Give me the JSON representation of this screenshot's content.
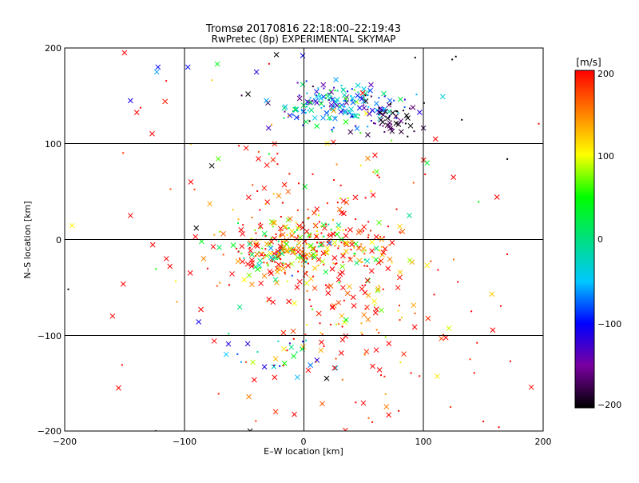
{
  "chart_data": {
    "type": "scatter",
    "title": "Tromsø 20170816 22:18:00–22:19:43",
    "subtitle": "RwPretec (8p) EXPERIMENTAL SKYMAP",
    "xlabel": "E–W location [km]",
    "ylabel": "N–S location [km]",
    "xlim": [
      -200,
      200
    ],
    "ylim": [
      -200,
      200
    ],
    "xticks": [
      "−200",
      "−100",
      "0",
      "100",
      "200"
    ],
    "yticks": [
      "−200",
      "−100",
      "0",
      "100",
      "200"
    ],
    "grid": true,
    "colorbar": {
      "label": "[m/s]",
      "range": [
        -200,
        200
      ],
      "ticks": [
        "200",
        "100",
        "0",
        "−100",
        "−200"
      ],
      "colormap": [
        "#000000",
        "#7a00a0",
        "#0000ff",
        "#00c8ff",
        "#00e080",
        "#00ff00",
        "#ffff00",
        "#ff8000",
        "#ff0000"
      ]
    },
    "clusters": [
      {
        "cx": 30,
        "cy": 140,
        "sx": 28,
        "sy": 12,
        "n": 190,
        "vmean": -70,
        "vsd": 70
      },
      {
        "cx": 75,
        "cy": 125,
        "sx": 15,
        "sy": 10,
        "n": 45,
        "vmean": -180,
        "vsd": 20
      },
      {
        "cx": 0,
        "cy": -12,
        "sx": 38,
        "sy": 18,
        "n": 360,
        "vmean": 150,
        "vsd": 90
      },
      {
        "cx": 10,
        "cy": 40,
        "sx": 45,
        "sy": 25,
        "n": 70,
        "vmean": 170,
        "vsd": 60
      },
      {
        "cx": 45,
        "cy": -70,
        "sx": 35,
        "sy": 35,
        "n": 90,
        "vmean": 180,
        "vsd": 60
      },
      {
        "cx": -20,
        "cy": -120,
        "sx": 25,
        "sy": 15,
        "n": 25,
        "vmean": -40,
        "vsd": 60
      },
      {
        "cx": 40,
        "cy": -150,
        "sx": 60,
        "sy": 25,
        "n": 30,
        "vmean": 180,
        "vsd": 50
      },
      {
        "cx": 0,
        "cy": 0,
        "sx": 110,
        "sy": 110,
        "n": 70,
        "vmean": 170,
        "vsd": 70
      }
    ],
    "markers": [
      {
        "x": -150,
        "y": 195,
        "v": 200,
        "s": "x"
      },
      {
        "x": -122,
        "y": 180,
        "v": -100,
        "s": "x"
      },
      {
        "x": -123,
        "y": 175,
        "v": -60,
        "s": "x"
      },
      {
        "x": -97,
        "y": 180,
        "v": -100,
        "s": "x"
      },
      {
        "x": -145,
        "y": 145,
        "v": -110,
        "s": "x"
      },
      {
        "x": -145,
        "y": 25,
        "v": 200,
        "s": "x"
      },
      {
        "x": -160,
        "y": -80,
        "v": 200,
        "s": "x"
      },
      {
        "x": -155,
        "y": -155,
        "v": 200,
        "s": "x"
      },
      {
        "x": -115,
        "y": -20,
        "v": 200,
        "s": "x"
      },
      {
        "x": -112,
        "y": -28,
        "v": 200,
        "s": "x"
      },
      {
        "x": -88,
        "y": -86,
        "v": -110,
        "s": "x"
      },
      {
        "x": -90,
        "y": 12,
        "v": -200,
        "s": "x"
      },
      {
        "x": -95,
        "y": -35,
        "v": 200,
        "s": "x"
      },
      {
        "x": 125,
        "y": 65,
        "v": 200,
        "s": "x"
      },
      {
        "x": 157,
        "y": -57,
        "v": 120,
        "s": "x"
      },
      {
        "x": 103,
        "y": -27,
        "v": 110,
        "s": "x"
      },
      {
        "x": 100,
        "y": 83,
        "v": 200,
        "s": "x"
      },
      {
        "x": 103,
        "y": 80,
        "v": 30,
        "s": "x"
      },
      {
        "x": 110,
        "y": 105,
        "v": 200,
        "s": "x"
      },
      {
        "x": -1,
        "y": 192,
        "v": -100,
        "s": "x"
      },
      {
        "x": -23,
        "y": 193,
        "v": -200,
        "s": "x"
      },
      {
        "x": -77,
        "y": 77,
        "v": -200,
        "s": "x"
      },
      {
        "x": -75,
        "y": -106,
        "v": 200,
        "s": "x"
      },
      {
        "x": -45,
        "y": -200,
        "v": -200,
        "s": "x"
      },
      {
        "x": -33,
        "y": -133,
        "v": -110,
        "s": "x"
      },
      {
        "x": -65,
        "y": -120,
        "v": -50,
        "s": "x"
      },
      {
        "x": 19,
        "y": -145,
        "v": -200,
        "s": "x"
      },
      {
        "x": 93,
        "y": 190,
        "v": -200,
        "s": "p"
      },
      {
        "x": 127,
        "y": 191,
        "v": -200,
        "s": "p"
      },
      {
        "x": 124,
        "y": 188,
        "v": -200,
        "s": "p"
      },
      {
        "x": 170,
        "y": 84,
        "v": -200,
        "s": "p"
      },
      {
        "x": 132,
        "y": 125,
        "v": -200,
        "s": "p"
      },
      {
        "x": -197,
        "y": -52,
        "v": -200,
        "s": "p"
      },
      {
        "x": -124,
        "y": -200,
        "v": -200,
        "s": "p"
      },
      {
        "x": 163,
        "y": -196,
        "v": 200,
        "s": "p"
      },
      {
        "x": 140,
        "y": -75,
        "v": 200,
        "s": "p"
      },
      {
        "x": 150,
        "y": -190,
        "v": 200,
        "s": "p"
      },
      {
        "x": -152,
        "y": -131,
        "v": 200,
        "s": "p"
      }
    ]
  }
}
